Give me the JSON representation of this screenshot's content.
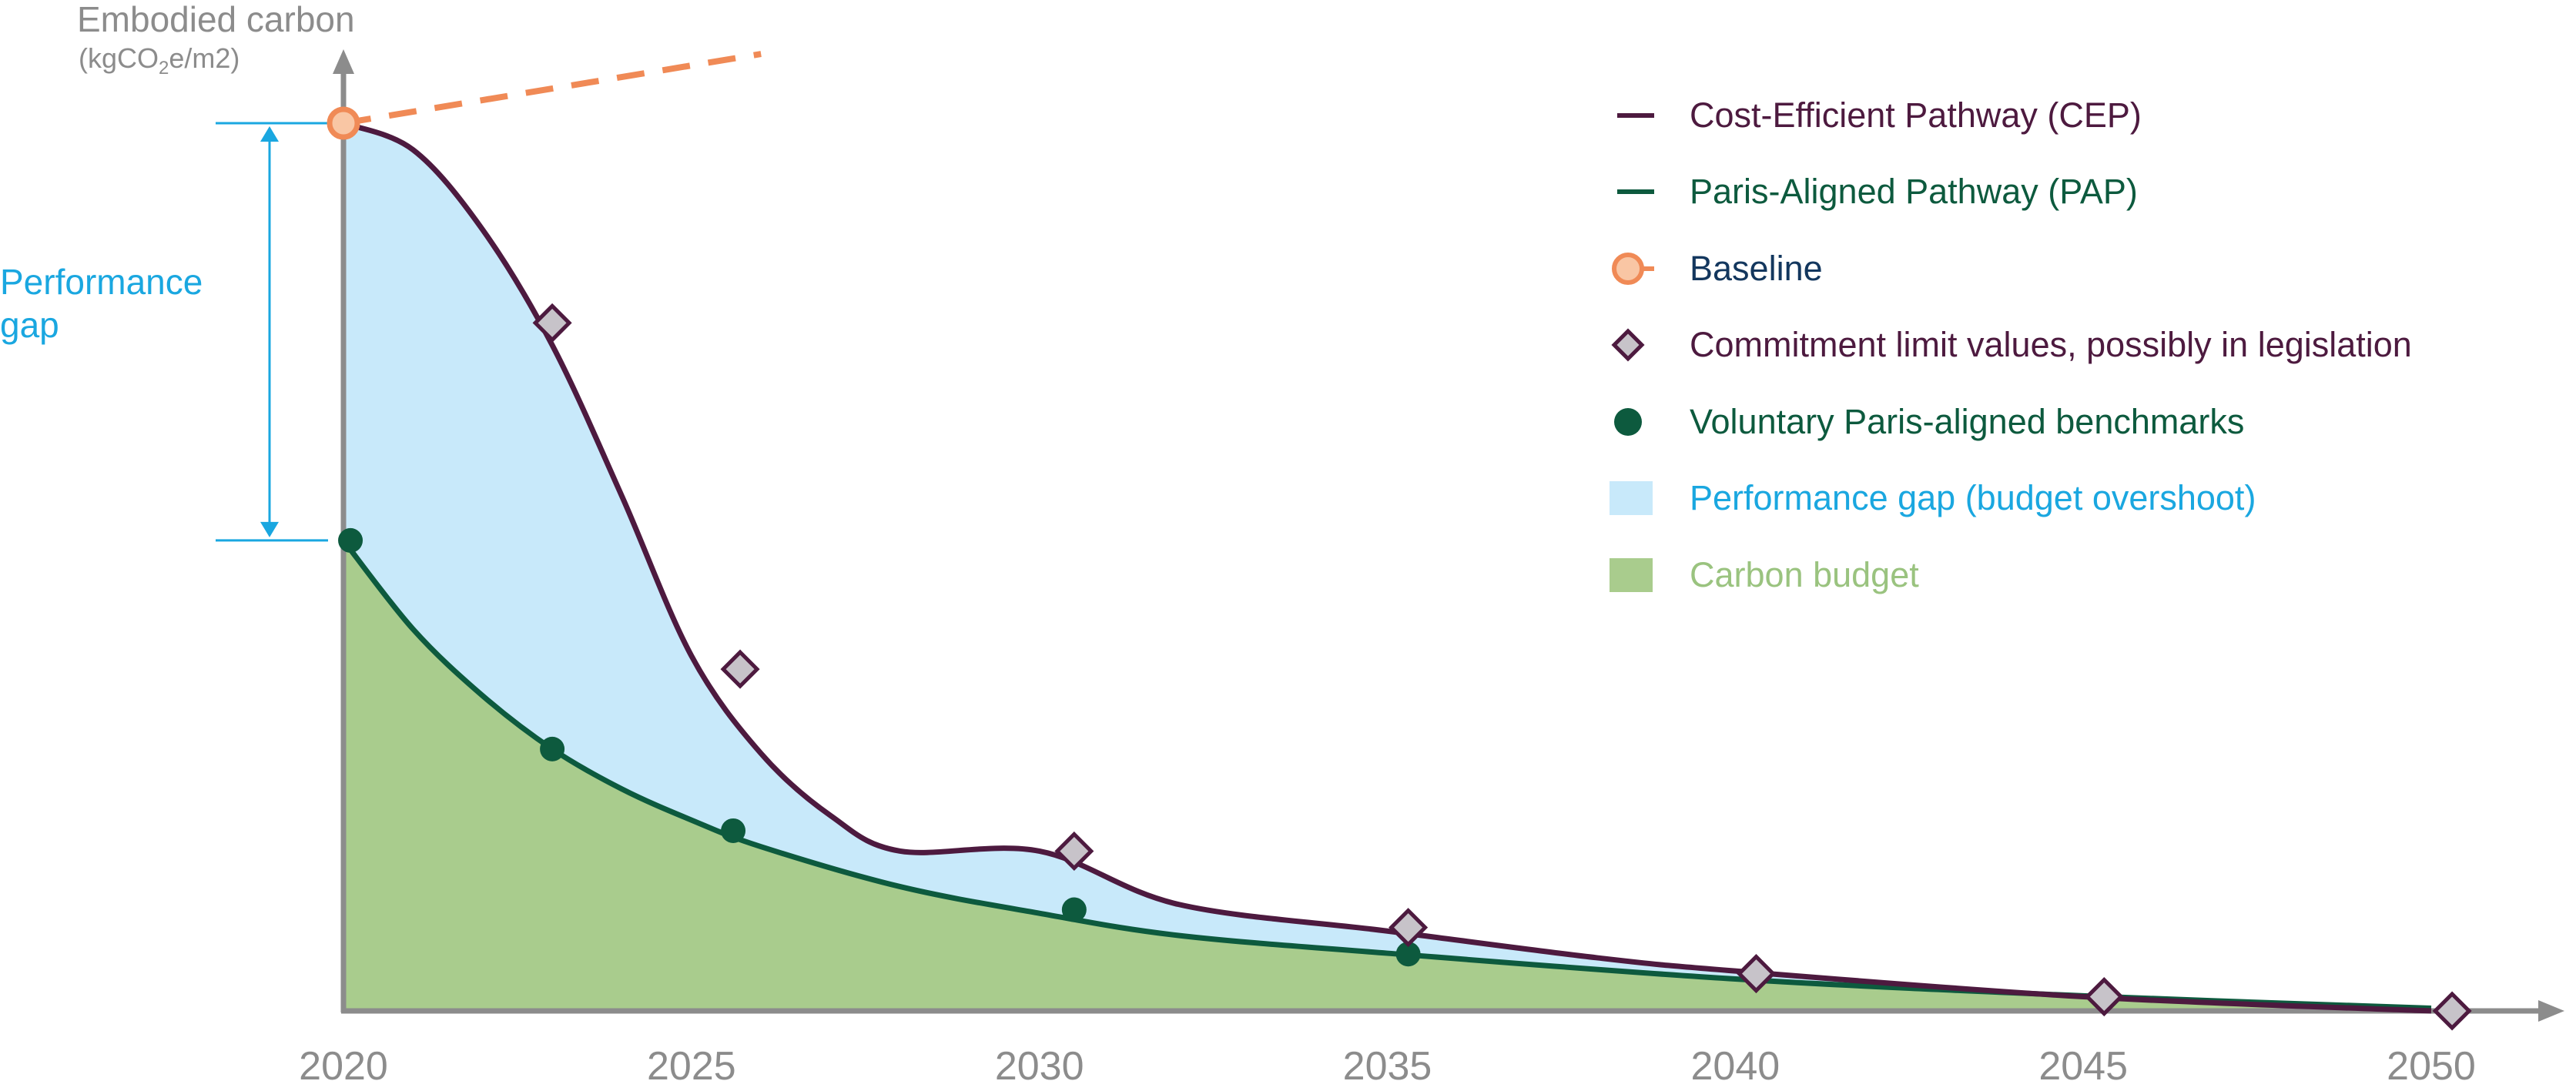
{
  "y_axis": {
    "title": "Embodied carbon",
    "unit_prefix": "(kgCO",
    "unit_sub": "2",
    "unit_suffix": "e/m2)"
  },
  "performance_gap_label": [
    "Performance",
    "gap"
  ],
  "legend": [
    {
      "key": "cep",
      "label": "Cost-Efficient Pathway (CEP)",
      "color": "#4d1a3f"
    },
    {
      "key": "pap",
      "label": "Paris-Aligned Pathway (PAP)",
      "color": "#0d5a3e"
    },
    {
      "key": "baseline",
      "label": "Baseline",
      "color": "#13375e"
    },
    {
      "key": "commitment",
      "label": "Commitment limit values, possibly in legislation",
      "color": "#4d1a3f"
    },
    {
      "key": "benchmarks",
      "label": "Voluntary Paris-aligned benchmarks",
      "color": "#0d5a3e"
    },
    {
      "key": "gap",
      "label": "Performance gap (budget overshoot)",
      "color": "#1aa7e0"
    },
    {
      "key": "budget",
      "label": "Carbon budget",
      "color": "#9ac37f"
    }
  ],
  "colors": {
    "cep_line": "#4d1a3f",
    "pap_line": "#0d5a3e",
    "baseline": "#f08a56",
    "baseline_fill": "#f9c6a4",
    "gap_fill": "#c8e9fa",
    "budget_fill": "#a9cc8d",
    "diamond_fill": "#c7c3c9",
    "axis": "#8c8c8c",
    "gap_arrow": "#1aa7e0"
  },
  "chart_data": {
    "type": "area",
    "x_ticks": [
      2020,
      2025,
      2030,
      2035,
      2040,
      2045,
      2050
    ],
    "xlim": [
      2020,
      2051.6
    ],
    "ylim": [
      0,
      100
    ],
    "series": [
      {
        "name": "Cost-Efficient Pathway (CEP)",
        "x": [
          2020,
          2021,
          2022,
          2023,
          2024,
          2025,
          2026,
          2027,
          2028,
          2030,
          2032,
          2035,
          2038,
          2040,
          2045,
          2050
        ],
        "y": [
          100,
          97,
          88,
          75,
          58,
          40,
          29,
          22,
          18,
          18,
          12,
          9,
          6,
          4.5,
          1.6,
          0
        ]
      },
      {
        "name": "Paris-Aligned Pathway (PAP)",
        "x": [
          2020,
          2021,
          2022,
          2023,
          2024,
          2025,
          2026,
          2028,
          2030,
          2032,
          2035,
          2040,
          2045,
          2050
        ],
        "y": [
          53,
          43,
          35.5,
          29.5,
          25,
          21.5,
          18.5,
          14,
          11,
          8.5,
          6.5,
          3.6,
          1.7,
          0.3
        ]
      }
    ],
    "baseline": {
      "x": [
        2020,
        2026
      ],
      "y": [
        100,
        107.8
      ]
    },
    "commitment_limits": {
      "x": [
        2023,
        2025.7,
        2030.5,
        2035.3,
        2040.3,
        2045.3,
        2050.3
      ],
      "y": [
        77.5,
        38.5,
        18,
        9.4,
        4.2,
        1.6,
        0
      ]
    },
    "voluntary_benchmarks": {
      "x": [
        2020.1,
        2023,
        2025.6,
        2030.5,
        2035.3
      ],
      "y": [
        53,
        29.5,
        20.3,
        11.4,
        6.4
      ]
    }
  }
}
